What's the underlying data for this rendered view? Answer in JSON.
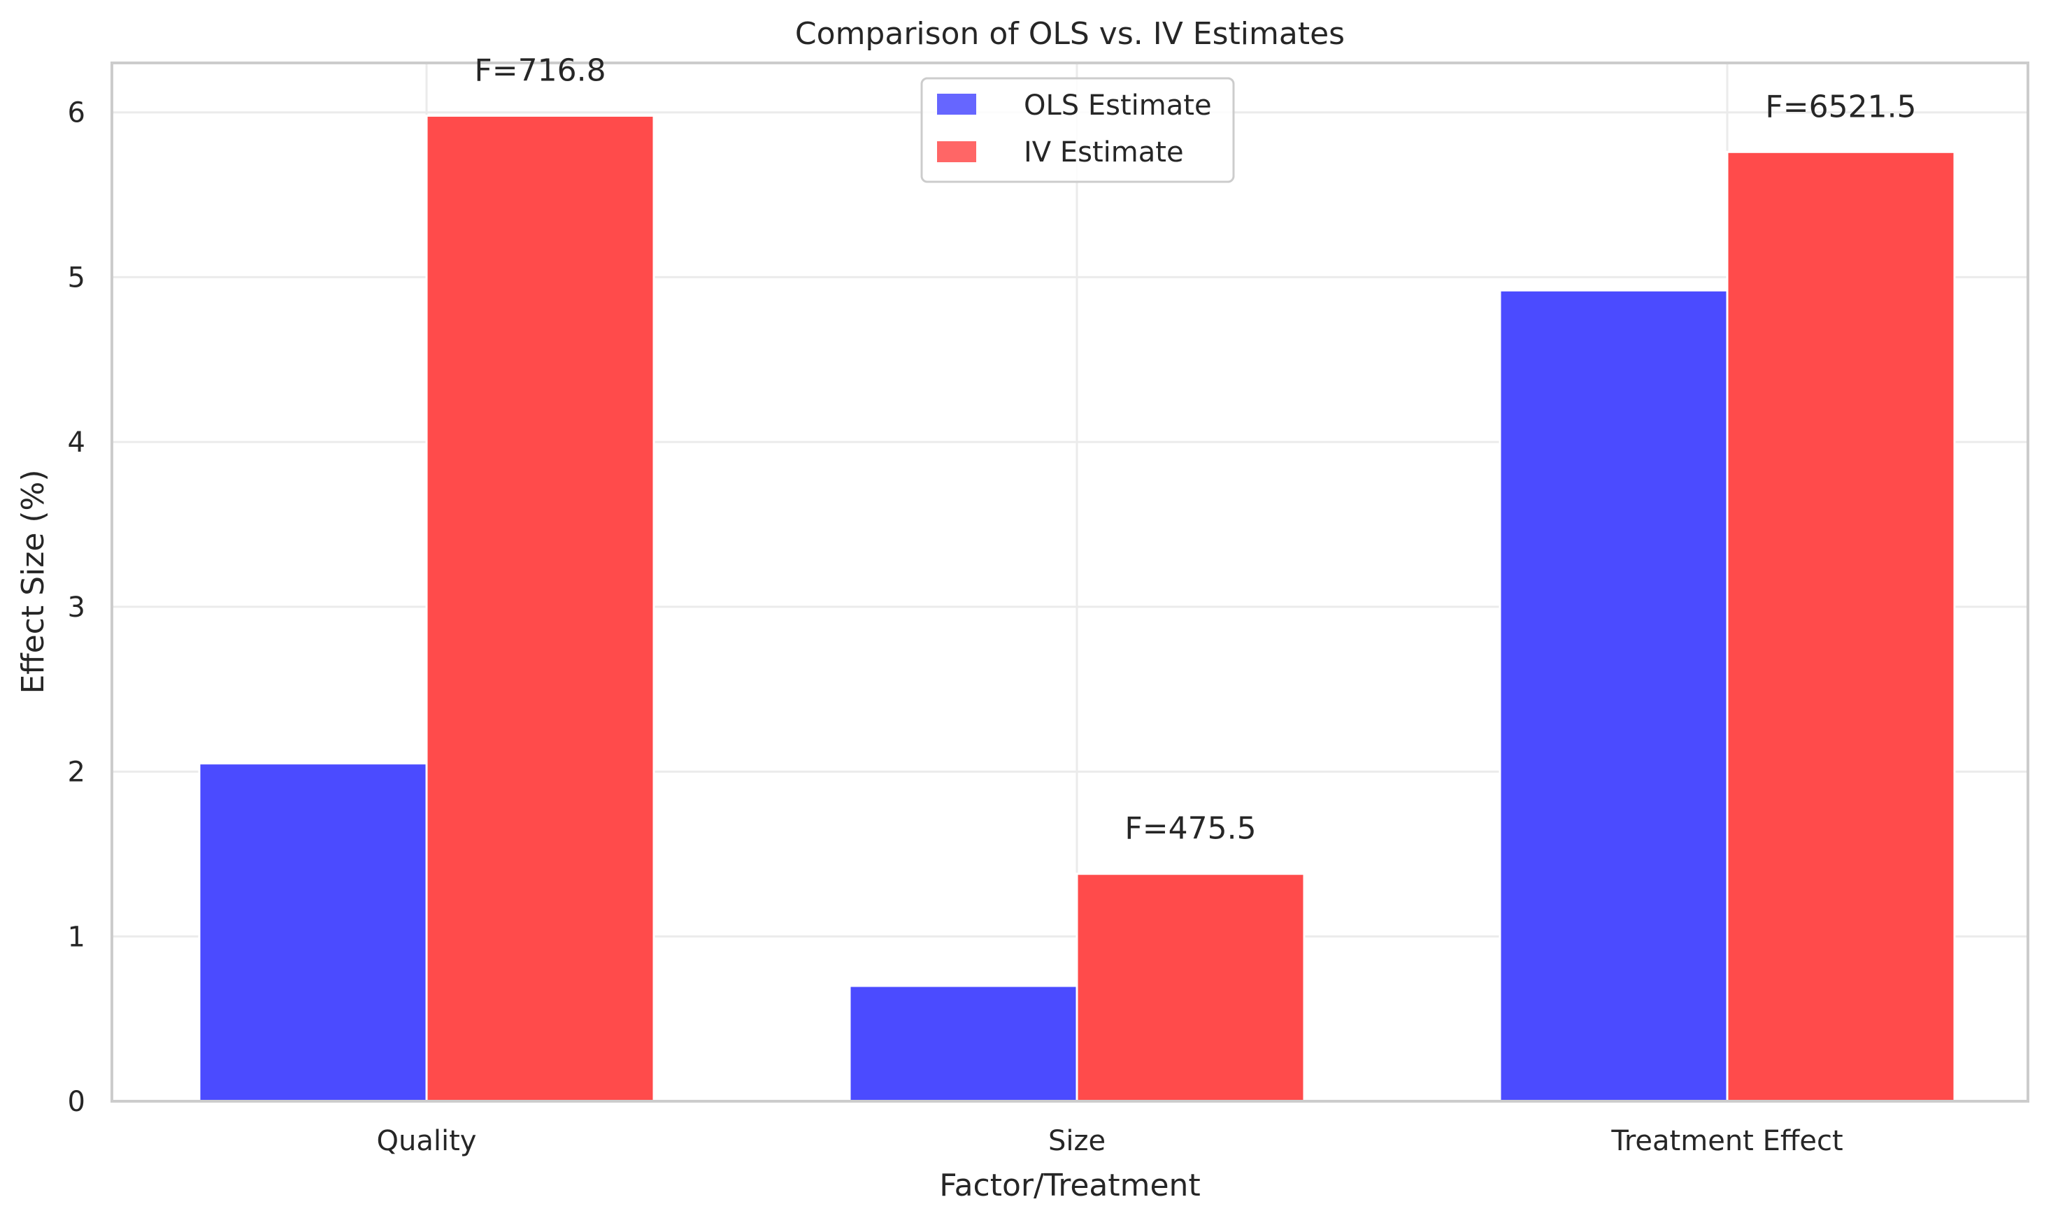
{
  "chart_data": {
    "type": "bar",
    "title": "Comparison of OLS vs. IV Estimates",
    "xlabel": "Factor/Treatment",
    "ylabel": "Effect Size (%)",
    "categories": [
      "Quality",
      "Size",
      "Treatment Effect"
    ],
    "series": [
      {
        "name": "OLS Estimate",
        "color": "#4B4BFF",
        "values": [
          2.05,
          0.7,
          4.92
        ]
      },
      {
        "name": "IV Estimate",
        "color": "#FF4B4B",
        "values": [
          5.98,
          1.38,
          5.76
        ]
      }
    ],
    "annotations": [
      "F=716.8",
      "F=475.5",
      "F=6521.5"
    ],
    "ylim": [
      0,
      6.3
    ],
    "yticks": [
      "0",
      "1",
      "2",
      "3",
      "4",
      "5",
      "6"
    ],
    "grid": true,
    "legend_position": "top-center"
  }
}
